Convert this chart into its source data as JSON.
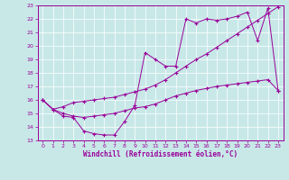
{
  "xlabel": "Windchill (Refroidissement éolien,°C)",
  "xlim": [
    -0.5,
    23.5
  ],
  "ylim": [
    13,
    23
  ],
  "xticks": [
    0,
    1,
    2,
    3,
    4,
    5,
    6,
    7,
    8,
    9,
    10,
    11,
    12,
    13,
    14,
    15,
    16,
    17,
    18,
    19,
    20,
    21,
    22,
    23
  ],
  "yticks": [
    13,
    14,
    15,
    16,
    17,
    18,
    19,
    20,
    21,
    22,
    23
  ],
  "bg_color": "#c8e8e8",
  "line_color": "#990099",
  "grid_color": "#aacccc",
  "line1_x": [
    0,
    1,
    2,
    3,
    4,
    5,
    6,
    7,
    8,
    9,
    10,
    11,
    12,
    13,
    14,
    15,
    16,
    17,
    18,
    19,
    20,
    21,
    22,
    23
  ],
  "line1_y": [
    16.0,
    15.3,
    14.8,
    14.7,
    13.7,
    13.5,
    13.4,
    13.4,
    14.4,
    15.6,
    19.5,
    19.0,
    18.5,
    18.5,
    22.0,
    21.7,
    22.0,
    21.9,
    22.0,
    22.2,
    22.5,
    20.4,
    22.8,
    16.7
  ],
  "line2_x": [
    0,
    1,
    2,
    3,
    4,
    5,
    6,
    7,
    8,
    9,
    10,
    11,
    12,
    13,
    14,
    15,
    16,
    17,
    18,
    19,
    20,
    21,
    22,
    23
  ],
  "line2_y": [
    16.0,
    15.3,
    15.5,
    15.8,
    15.9,
    16.0,
    16.1,
    16.2,
    16.4,
    16.6,
    16.8,
    17.1,
    17.5,
    18.0,
    18.5,
    19.0,
    19.4,
    19.9,
    20.4,
    20.9,
    21.4,
    21.9,
    22.4,
    22.9
  ],
  "line3_x": [
    0,
    1,
    2,
    3,
    4,
    5,
    6,
    7,
    8,
    9,
    10,
    11,
    12,
    13,
    14,
    15,
    16,
    17,
    18,
    19,
    20,
    21,
    22,
    23
  ],
  "line3_y": [
    16.0,
    15.3,
    15.0,
    14.8,
    14.7,
    14.8,
    14.9,
    15.0,
    15.2,
    15.4,
    15.5,
    15.7,
    16.0,
    16.3,
    16.5,
    16.7,
    16.85,
    17.0,
    17.1,
    17.2,
    17.3,
    17.4,
    17.5,
    16.7
  ]
}
